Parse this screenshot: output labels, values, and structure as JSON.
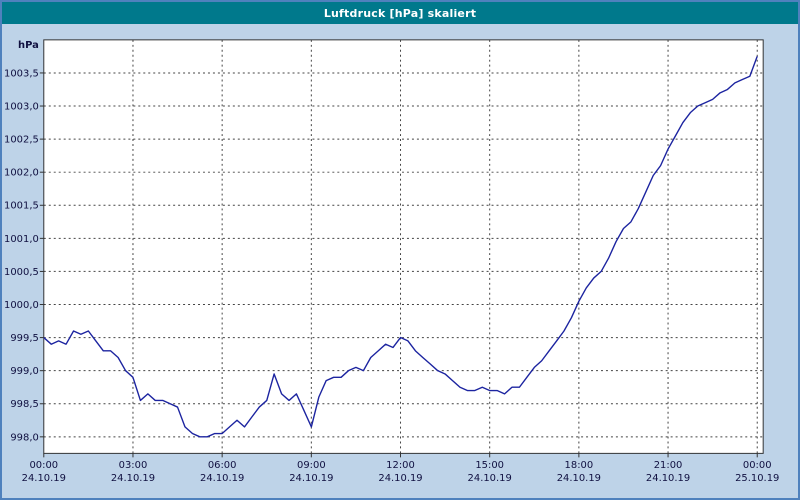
{
  "window": {
    "title": "Luftdruck [hPa] skaliert"
  },
  "colors": {
    "titlebar_bg": "#00798C",
    "titlebar_text": "#FFFFFF",
    "frame_bg": "#BED3E8",
    "frame_border": "#4F81BD",
    "plot_bg": "#FFFFFF",
    "plot_border": "#333333",
    "grid": "#444444",
    "line": "#1C24A0",
    "axis_text": "#101040"
  },
  "chart_data": {
    "type": "line",
    "title": "Luftdruck [hPa] skaliert",
    "ylabel": "hPa",
    "xlabel": "",
    "grid": "dashed",
    "legend": "none",
    "ylim": [
      997.75,
      1004.0
    ],
    "xlim_hours": [
      0,
      24.2
    ],
    "y_ticks": [
      {
        "value": 998.0,
        "label": "998,0"
      },
      {
        "value": 998.5,
        "label": "998,5"
      },
      {
        "value": 999.0,
        "label": "999,0"
      },
      {
        "value": 999.5,
        "label": "999,5"
      },
      {
        "value": 1000.0,
        "label": "1000,0"
      },
      {
        "value": 1000.5,
        "label": "1000,5"
      },
      {
        "value": 1001.0,
        "label": "1001,0"
      },
      {
        "value": 1001.5,
        "label": "1001,5"
      },
      {
        "value": 1002.0,
        "label": "1002,0"
      },
      {
        "value": 1002.5,
        "label": "1002,5"
      },
      {
        "value": 1003.0,
        "label": "1003,0"
      },
      {
        "value": 1003.5,
        "label": "1003,5"
      }
    ],
    "x_ticks": [
      {
        "hour": 0,
        "time": "00:00",
        "date": "24.10.19"
      },
      {
        "hour": 3,
        "time": "03:00",
        "date": "24.10.19"
      },
      {
        "hour": 6,
        "time": "06:00",
        "date": "24.10.19"
      },
      {
        "hour": 9,
        "time": "09:00",
        "date": "24.10.19"
      },
      {
        "hour": 12,
        "time": "12:00",
        "date": "24.10.19"
      },
      {
        "hour": 15,
        "time": "15:00",
        "date": "24.10.19"
      },
      {
        "hour": 18,
        "time": "18:00",
        "date": "24.10.19"
      },
      {
        "hour": 21,
        "time": "21:00",
        "date": "24.10.19"
      },
      {
        "hour": 24,
        "time": "00:00",
        "date": "25.10.19"
      }
    ],
    "series": [
      {
        "name": "Luftdruck [hPa]",
        "x_start_hours": 0,
        "x_step_hours": 0.25,
        "values": [
          999.5,
          999.4,
          999.45,
          999.4,
          999.6,
          999.55,
          999.6,
          999.45,
          999.3,
          999.3,
          999.2,
          999.0,
          998.9,
          998.55,
          998.65,
          998.55,
          998.55,
          998.5,
          998.45,
          998.15,
          998.05,
          998.0,
          998.0,
          998.05,
          998.05,
          998.15,
          998.25,
          998.15,
          998.3,
          998.45,
          998.55,
          998.95,
          998.65,
          998.55,
          998.65,
          998.4,
          998.15,
          998.6,
          998.85,
          998.9,
          998.9,
          999.0,
          999.05,
          999.0,
          999.2,
          999.3,
          999.4,
          999.35,
          999.5,
          999.45,
          999.3,
          999.2,
          999.1,
          999.0,
          998.95,
          998.85,
          998.75,
          998.7,
          998.7,
          998.75,
          998.7,
          998.7,
          998.65,
          998.75,
          998.75,
          998.9,
          999.05,
          999.15,
          999.3,
          999.45,
          999.6,
          999.8,
          1000.05,
          1000.25,
          1000.4,
          1000.5,
          1000.7,
          1000.95,
          1001.15,
          1001.25,
          1001.45,
          1001.7,
          1001.95,
          1002.1,
          1002.35,
          1002.55,
          1002.75,
          1002.9,
          1003.0,
          1003.05,
          1003.1,
          1003.2,
          1003.25,
          1003.35,
          1003.4,
          1003.45,
          1003.75
        ]
      }
    ]
  }
}
